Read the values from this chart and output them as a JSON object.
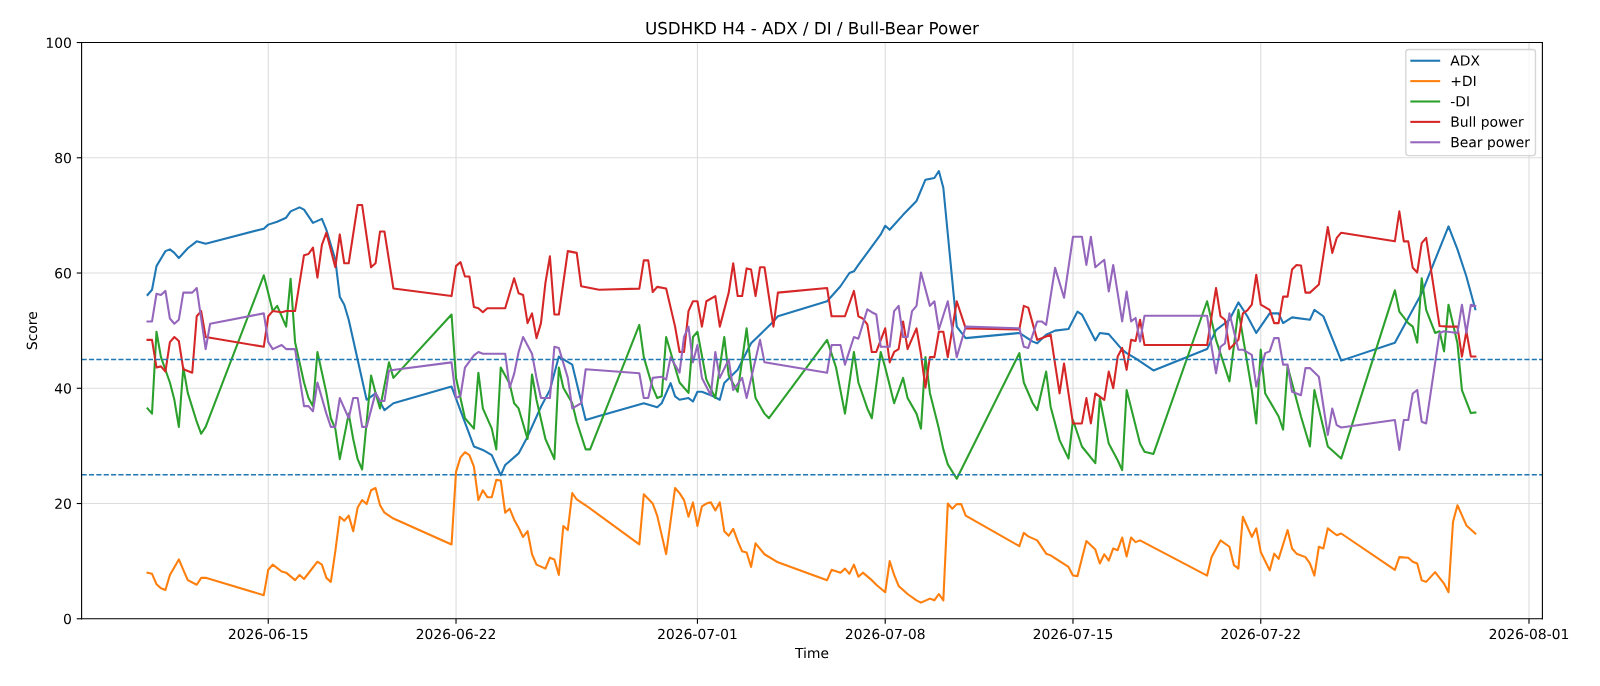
{
  "chart_data": {
    "type": "line",
    "title": "USDHKD H4 - ADX / DI / Bull-Bear Power",
    "xlabel": "Time",
    "ylabel": "Score",
    "xlim": [
      "2026-06-08T01:00",
      "2026-08-01T12:00"
    ],
    "xticks": [
      "2026-06-15",
      "2026-06-22",
      "2026-07-01",
      "2026-07-08",
      "2026-07-15",
      "2026-07-22",
      "2026-08-01"
    ],
    "ylim": [
      0,
      100
    ],
    "yticks": [
      0,
      20,
      40,
      60,
      80,
      100
    ],
    "grid": true,
    "legend": "top right",
    "line_style": "solid",
    "ref_lines": [
      {
        "axis": "y",
        "value": 45,
        "color": "#1f77b4",
        "line_style": "dashed"
      },
      {
        "axis": "y",
        "value": 25,
        "color": "#1f77b4",
        "line_style": "dashed"
      }
    ],
    "series": [
      {
        "name": "ADX",
        "color": "#1f77b4",
        "x": [
          "2026-06-10T12:00",
          "2026-06-10T16:00",
          "2026-06-10T20:00",
          "2026-06-11T04:00",
          "2026-06-11T08:00",
          "2026-06-11T12:00",
          "2026-06-11T16:00",
          "2026-06-12T00:00",
          "2026-06-12T08:00",
          "2026-06-12T16:00",
          "2026-06-14T20:00",
          "2026-06-15T00:00",
          "2026-06-15T08:00",
          "2026-06-15T16:00",
          "2026-06-15T20:00",
          "2026-06-16T04:00",
          "2026-06-16T08:00",
          "2026-06-16T16:00",
          "2026-06-17T00:00",
          "2026-06-17T04:00",
          "2026-06-17T12:00",
          "2026-06-17T16:00",
          "2026-06-17T20:00",
          "2026-06-18T00:00",
          "2026-06-18T16:00",
          "2026-06-19T00:00",
          "2026-06-19T08:00",
          "2026-06-19T16:00",
          "2026-06-21T20:00",
          "2026-06-22T16:00",
          "2026-06-23T00:00",
          "2026-06-23T08:00",
          "2026-06-23T16:00",
          "2026-06-23T20:00",
          "2026-06-24T08:00",
          "2026-06-24T16:00",
          "2026-06-25T04:00",
          "2026-06-25T12:00",
          "2026-06-25T20:00",
          "2026-06-26T08:00",
          "2026-06-26T20:00",
          "2026-06-27T08:00",
          "2026-06-29T00:00",
          "2026-06-29T12:00",
          "2026-06-29T16:00",
          "2026-06-30T00:00",
          "2026-06-30T04:00",
          "2026-06-30T08:00",
          "2026-06-30T16:00",
          "2026-06-30T20:00",
          "2026-07-01T00:00",
          "2026-07-01T04:00",
          "2026-07-01T12:00",
          "2026-07-01T20:00",
          "2026-07-02T00:00",
          "2026-07-02T12:00",
          "2026-07-03T00:00",
          "2026-07-03T20:00",
          "2026-07-04T00:00",
          "2026-07-05T20:00",
          "2026-07-06T08:00",
          "2026-07-06T16:00",
          "2026-07-06T20:00",
          "2026-07-07T00:00",
          "2026-07-07T12:00",
          "2026-07-07T20:00",
          "2026-07-08T00:00",
          "2026-07-08T04:00",
          "2026-07-08T16:00",
          "2026-07-09T04:00",
          "2026-07-09T12:00",
          "2026-07-09T20:00",
          "2026-07-10T00:00",
          "2026-07-10T04:00",
          "2026-07-10T16:00",
          "2026-07-11T00:00",
          "2026-07-13T00:00",
          "2026-07-13T12:00",
          "2026-07-13T16:00",
          "2026-07-14T00:00",
          "2026-07-14T08:00",
          "2026-07-14T20:00",
          "2026-07-15T04:00",
          "2026-07-15T08:00",
          "2026-07-15T20:00",
          "2026-07-16T00:00",
          "2026-07-16T08:00",
          "2026-07-16T20:00",
          "2026-07-17T00:00",
          "2026-07-17T08:00",
          "2026-07-18T00:00",
          "2026-07-20T00:00",
          "2026-07-20T08:00",
          "2026-07-20T20:00",
          "2026-07-21T04:00",
          "2026-07-21T12:00",
          "2026-07-21T20:00",
          "2026-07-22T08:00",
          "2026-07-22T16:00",
          "2026-07-22T20:00",
          "2026-07-23T04:00",
          "2026-07-23T20:00",
          "2026-07-24T00:00",
          "2026-07-24T08:00",
          "2026-07-25T00:00",
          "2026-07-27T00:00",
          "2026-07-28T00:00",
          "2026-07-29T00:00",
          "2026-07-29T08:00",
          "2026-07-29T16:00",
          "2026-07-30T00:00"
        ],
        "values": [
          56.2,
          57.1,
          61.2,
          63.8,
          64.1,
          63.5,
          62.6,
          64.3,
          65.5,
          65.1,
          67.7,
          68.4,
          68.9,
          69.6,
          70.7,
          71.4,
          71.0,
          68.7,
          69.4,
          67.5,
          62.3,
          55.9,
          54.5,
          51.9,
          38.0,
          39.1,
          36.2,
          37.4,
          40.3,
          29.9,
          29.3,
          28.4,
          24.9,
          26.7,
          28.7,
          31.6,
          36.8,
          39.7,
          45.5,
          44.1,
          34.5,
          35.2,
          37.4,
          36.7,
          37.4,
          40.9,
          38.6,
          38.0,
          38.3,
          37.7,
          39.4,
          39.4,
          38.8,
          38.0,
          40.9,
          43.2,
          47.8,
          51.6,
          52.5,
          55.1,
          57.7,
          60.0,
          60.3,
          61.4,
          64.6,
          66.7,
          68.2,
          67.5,
          70.1,
          72.5,
          76.2,
          76.5,
          77.7,
          74.8,
          50.7,
          48.7,
          49.6,
          48.1,
          47.8,
          49.3,
          50.0,
          50.3,
          53.3,
          52.8,
          48.3,
          49.6,
          49.4,
          46.7,
          46.1,
          45.2,
          43.1,
          46.8,
          50.1,
          51.9,
          54.9,
          52.5,
          49.6,
          53.0,
          53.0,
          51.3,
          52.3,
          51.9,
          53.6,
          52.5,
          44.8,
          47.9,
          56.5,
          68.1,
          64.1,
          59.4,
          53.7
        ]
      },
      {
        "name": "+DI",
        "color": "#ff7f0e",
        "x": [
          "2026-06-10T12:00",
          "2026-06-10T16:00",
          "2026-06-10T20:00",
          "2026-06-11T00:00",
          "2026-06-11T04:00",
          "2026-06-11T08:00",
          "2026-06-11T16:00",
          "2026-06-11T20:00",
          "2026-06-12T00:00",
          "2026-06-12T08:00",
          "2026-06-12T12:00",
          "2026-06-12T16:00",
          "2026-06-14T20:00",
          "2026-06-15T00:00",
          "2026-06-15T04:00",
          "2026-06-15T12:00",
          "2026-06-15T16:00",
          "2026-06-16T00:00",
          "2026-06-16T04:00",
          "2026-06-16T08:00",
          "2026-06-16T12:00",
          "2026-06-16T20:00",
          "2026-06-17T00:00",
          "2026-06-17T04:00",
          "2026-06-17T08:00",
          "2026-06-17T12:00",
          "2026-06-17T16:00",
          "2026-06-17T20:00",
          "2026-06-18T00:00",
          "2026-06-18T04:00",
          "2026-06-18T08:00",
          "2026-06-18T12:00",
          "2026-06-18T16:00",
          "2026-06-18T20:00",
          "2026-06-19T00:00",
          "2026-06-19T04:00",
          "2026-06-19T08:00",
          "2026-06-19T12:00",
          "2026-06-19T16:00",
          "2026-06-21T20:00",
          "2026-06-22T00:00",
          "2026-06-22T04:00",
          "2026-06-22T08:00",
          "2026-06-22T12:00",
          "2026-06-22T16:00",
          "2026-06-22T20:00",
          "2026-06-23T00:00",
          "2026-06-23T04:00",
          "2026-06-23T08:00",
          "2026-06-23T12:00",
          "2026-06-23T16:00",
          "2026-06-23T20:00",
          "2026-06-24T00:00",
          "2026-06-24T04:00",
          "2026-06-24T08:00",
          "2026-06-24T12:00",
          "2026-06-24T16:00",
          "2026-06-24T20:00",
          "2026-06-25T00:00",
          "2026-06-25T08:00",
          "2026-06-25T12:00",
          "2026-06-25T16:00",
          "2026-06-25T20:00",
          "2026-06-26T00:00",
          "2026-06-26T04:00",
          "2026-06-26T08:00",
          "2026-06-26T12:00",
          "2026-06-26T20:00",
          "2026-06-28T20:00",
          "2026-06-29T00:00",
          "2026-06-29T08:00",
          "2026-06-29T12:00",
          "2026-06-29T20:00",
          "2026-06-30T04:00",
          "2026-06-30T08:00",
          "2026-06-30T12:00",
          "2026-06-30T16:00",
          "2026-06-30T20:00",
          "2026-07-01T00:00",
          "2026-07-01T04:00",
          "2026-07-01T08:00",
          "2026-07-01T12:00",
          "2026-07-01T16:00",
          "2026-07-01T20:00",
          "2026-07-02T00:00",
          "2026-07-02T04:00",
          "2026-07-02T08:00",
          "2026-07-02T12:00",
          "2026-07-02T16:00",
          "2026-07-02T20:00",
          "2026-07-03T00:00",
          "2026-07-03T04:00",
          "2026-07-03T12:00",
          "2026-07-04T00:00",
          "2026-07-05T20:00",
          "2026-07-06T00:00",
          "2026-07-06T08:00",
          "2026-07-06T12:00",
          "2026-07-06T16:00",
          "2026-07-06T20:00",
          "2026-07-07T00:00",
          "2026-07-07T04:00",
          "2026-07-07T12:00",
          "2026-07-07T16:00",
          "2026-07-08T00:00",
          "2026-07-08T04:00",
          "2026-07-08T08:00",
          "2026-07-08T12:00",
          "2026-07-08T20:00",
          "2026-07-09T04:00",
          "2026-07-09T08:00",
          "2026-07-09T16:00",
          "2026-07-09T20:00",
          "2026-07-10T00:00",
          "2026-07-10T04:00",
          "2026-07-10T08:00",
          "2026-07-10T12:00",
          "2026-07-10T16:00",
          "2026-07-10T20:00",
          "2026-07-11T00:00",
          "2026-07-13T00:00",
          "2026-07-13T04:00",
          "2026-07-13T08:00",
          "2026-07-13T16:00",
          "2026-07-14T00:00",
          "2026-07-14T04:00",
          "2026-07-14T20:00",
          "2026-07-15T00:00",
          "2026-07-15T04:00",
          "2026-07-15T12:00",
          "2026-07-15T20:00",
          "2026-07-16T00:00",
          "2026-07-16T04:00",
          "2026-07-16T08:00",
          "2026-07-16T12:00",
          "2026-07-16T16:00",
          "2026-07-16T20:00",
          "2026-07-17T00:00",
          "2026-07-17T04:00",
          "2026-07-17T08:00",
          "2026-07-17T12:00",
          "2026-07-20T00:00",
          "2026-07-20T04:00",
          "2026-07-20T12:00",
          "2026-07-20T20:00",
          "2026-07-21T00:00",
          "2026-07-21T04:00",
          "2026-07-21T08:00",
          "2026-07-21T16:00",
          "2026-07-21T20:00",
          "2026-07-22T00:00",
          "2026-07-22T08:00",
          "2026-07-22T12:00",
          "2026-07-22T16:00",
          "2026-07-23T00:00",
          "2026-07-23T04:00",
          "2026-07-23T08:00",
          "2026-07-23T16:00",
          "2026-07-23T20:00",
          "2026-07-24T00:00",
          "2026-07-24T04:00",
          "2026-07-24T08:00",
          "2026-07-24T12:00",
          "2026-07-24T20:00",
          "2026-07-25T00:00",
          "2026-07-27T00:00",
          "2026-07-27T04:00",
          "2026-07-27T12:00",
          "2026-07-27T16:00",
          "2026-07-27T20:00",
          "2026-07-28T00:00",
          "2026-07-28T04:00",
          "2026-07-28T12:00",
          "2026-07-28T20:00",
          "2026-07-29T00:00",
          "2026-07-29T04:00",
          "2026-07-29T08:00",
          "2026-07-29T16:00",
          "2026-07-30T00:00"
        ],
        "values": [
          8.0,
          7.8,
          6.0,
          5.3,
          5.0,
          7.6,
          10.3,
          8.5,
          6.7,
          5.9,
          7.1,
          7.1,
          4.1,
          8.5,
          9.4,
          8.2,
          8.0,
          6.7,
          7.6,
          6.9,
          7.9,
          9.9,
          9.4,
          7.1,
          6.4,
          11.7,
          17.7,
          17.0,
          17.9,
          15.2,
          19.3,
          20.6,
          19.9,
          22.3,
          22.7,
          19.7,
          18.4,
          17.9,
          17.4,
          12.9,
          25.5,
          28.0,
          28.9,
          28.4,
          26.4,
          20.6,
          22.3,
          21.1,
          21.1,
          24.1,
          24.0,
          18.4,
          19.1,
          17.2,
          15.8,
          14.2,
          15.2,
          11.2,
          9.4,
          8.7,
          10.6,
          10.3,
          7.6,
          16.1,
          15.4,
          21.8,
          20.7,
          19.7,
          12.9,
          21.6,
          20.0,
          17.9,
          11.2,
          22.7,
          21.8,
          20.6,
          17.7,
          20.2,
          16.1,
          19.5,
          20.0,
          20.2,
          18.8,
          20.2,
          15.2,
          14.4,
          15.6,
          13.5,
          11.7,
          11.5,
          9.0,
          13.1,
          11.2,
          9.8,
          6.7,
          8.5,
          8.0,
          8.7,
          7.8,
          9.4,
          7.3,
          8.0,
          6.7,
          5.9,
          4.6,
          10.0,
          7.6,
          5.7,
          4.3,
          3.2,
          2.8,
          3.5,
          3.2,
          4.3,
          3.2,
          20.0,
          19.1,
          19.9,
          19.9,
          17.9,
          12.6,
          14.9,
          14.3,
          13.6,
          11.3,
          11.0,
          9.0,
          7.5,
          7.4,
          13.5,
          12.0,
          9.6,
          11.2,
          10.1,
          12.2,
          11.9,
          14.1,
          10.8,
          14.1,
          13.3,
          13.6,
          7.5,
          10.7,
          13.6,
          12.5,
          9.3,
          8.7,
          17.7,
          14.2,
          15.7,
          11.6,
          8.4,
          11.3,
          10.4,
          15.4,
          12.2,
          11.3,
          10.7,
          9.6,
          7.5,
          12.5,
          12.2,
          15.7,
          14.5,
          14.8,
          8.5,
          10.7,
          10.6,
          9.9,
          9.6,
          6.7,
          6.4,
          8.1,
          6.1,
          4.6,
          16.8,
          19.7,
          16.2,
          14.8
        ]
      },
      {
        "name": "-DI",
        "color": "#2ca02c",
        "x": [
          "2026-06-10T12:00",
          "2026-06-10T16:00",
          "2026-06-10T20:00",
          "2026-06-11T00:00",
          "2026-06-11T08:00",
          "2026-06-11T12:00",
          "2026-06-11T16:00",
          "2026-06-11T20:00",
          "2026-06-12T00:00",
          "2026-06-12T08:00",
          "2026-06-12T12:00",
          "2026-06-12T16:00",
          "2026-06-14T20:00",
          "2026-06-15T04:00",
          "2026-06-15T08:00",
          "2026-06-15T16:00",
          "2026-06-15T20:00",
          "2026-06-16T00:00",
          "2026-06-16T08:00",
          "2026-06-16T12:00",
          "2026-06-16T16:00",
          "2026-06-16T20:00",
          "2026-06-17T04:00",
          "2026-06-17T08:00",
          "2026-06-17T12:00",
          "2026-06-17T16:00",
          "2026-06-18T00:00",
          "2026-06-18T04:00",
          "2026-06-18T08:00",
          "2026-06-18T12:00",
          "2026-06-18T20:00",
          "2026-06-19T00:00",
          "2026-06-19T04:00",
          "2026-06-19T12:00",
          "2026-06-19T16:00",
          "2026-06-21T20:00",
          "2026-06-22T00:00",
          "2026-06-22T08:00",
          "2026-06-22T16:00",
          "2026-06-22T20:00",
          "2026-06-23T00:00",
          "2026-06-23T08:00",
          "2026-06-23T12:00",
          "2026-06-23T16:00",
          "2026-06-24T00:00",
          "2026-06-24T04:00",
          "2026-06-24T08:00",
          "2026-06-24T16:00",
          "2026-06-24T20:00",
          "2026-06-25T00:00",
          "2026-06-25T08:00",
          "2026-06-25T16:00",
          "2026-06-25T20:00",
          "2026-06-26T00:00",
          "2026-06-26T08:00",
          "2026-06-26T12:00",
          "2026-06-26T20:00",
          "2026-06-27T00:00",
          "2026-06-28T20:00",
          "2026-06-29T00:00",
          "2026-06-29T08:00",
          "2026-06-29T12:00",
          "2026-06-29T16:00",
          "2026-06-29T20:00",
          "2026-06-30T04:00",
          "2026-06-30T08:00",
          "2026-06-30T16:00",
          "2026-06-30T20:00",
          "2026-07-01T00:00",
          "2026-07-01T08:00",
          "2026-07-01T16:00",
          "2026-07-02T00:00",
          "2026-07-02T04:00",
          "2026-07-02T12:00",
          "2026-07-02T20:00",
          "2026-07-03T00:00",
          "2026-07-03T04:00",
          "2026-07-03T12:00",
          "2026-07-03T16:00",
          "2026-07-05T20:00",
          "2026-07-06T04:00",
          "2026-07-06T12:00",
          "2026-07-06T20:00",
          "2026-07-07T00:00",
          "2026-07-07T08:00",
          "2026-07-07T12:00",
          "2026-07-07T20:00",
          "2026-07-08T00:00",
          "2026-07-08T08:00",
          "2026-07-08T16:00",
          "2026-07-08T20:00",
          "2026-07-09T04:00",
          "2026-07-09T08:00",
          "2026-07-09T12:00",
          "2026-07-09T16:00",
          "2026-07-10T00:00",
          "2026-07-10T04:00",
          "2026-07-10T08:00",
          "2026-07-10T16:00",
          "2026-07-13T00:00",
          "2026-07-13T04:00",
          "2026-07-13T12:00",
          "2026-07-13T16:00",
          "2026-07-14T00:00",
          "2026-07-14T04:00",
          "2026-07-14T12:00",
          "2026-07-14T20:00",
          "2026-07-15T00:00",
          "2026-07-15T08:00",
          "2026-07-15T20:00",
          "2026-07-16T00:00",
          "2026-07-16T08:00",
          "2026-07-16T16:00",
          "2026-07-16T20:00",
          "2026-07-17T00:00",
          "2026-07-17T12:00",
          "2026-07-17T16:00",
          "2026-07-18T00:00",
          "2026-07-20T00:00",
          "2026-07-20T08:00",
          "2026-07-20T20:00",
          "2026-07-21T04:00",
          "2026-07-21T16:00",
          "2026-07-21T20:00",
          "2026-07-22T00:00",
          "2026-07-22T04:00",
          "2026-07-22T16:00",
          "2026-07-22T20:00",
          "2026-07-23T00:00",
          "2026-07-23T12:00",
          "2026-07-23T20:00",
          "2026-07-24T00:00",
          "2026-07-24T12:00",
          "2026-07-25T00:00",
          "2026-07-27T00:00",
          "2026-07-27T04:00",
          "2026-07-27T12:00",
          "2026-07-27T16:00",
          "2026-07-27T20:00",
          "2026-07-28T00:00",
          "2026-07-28T04:00",
          "2026-07-28T12:00",
          "2026-07-28T16:00",
          "2026-07-28T20:00",
          "2026-07-29T00:00",
          "2026-07-29T08:00",
          "2026-07-29T12:00",
          "2026-07-29T20:00",
          "2026-07-30T00:00"
        ],
        "values": [
          36.5,
          35.6,
          49.8,
          45.4,
          41.0,
          38.0,
          33.3,
          43.6,
          39.2,
          34.2,
          32.1,
          33.3,
          59.6,
          53.4,
          54.3,
          50.7,
          59.0,
          48.0,
          41.0,
          38.3,
          36.9,
          46.3,
          39.2,
          34.8,
          33.0,
          27.7,
          35.6,
          31.2,
          27.7,
          25.9,
          42.2,
          39.2,
          36.5,
          44.5,
          41.8,
          52.8,
          41.8,
          34.8,
          33.0,
          42.7,
          36.5,
          33.0,
          29.4,
          43.6,
          40.8,
          37.4,
          36.5,
          31.2,
          42.4,
          38.0,
          31.2,
          27.7,
          43.6,
          40.1,
          37.4,
          34.2,
          29.4,
          29.4,
          51.0,
          45.4,
          40.1,
          38.3,
          38.6,
          48.9,
          43.6,
          41.0,
          39.2,
          48.9,
          49.8,
          41.5,
          38.3,
          48.9,
          42.2,
          39.4,
          50.4,
          43.6,
          38.3,
          35.6,
          34.8,
          48.4,
          43.6,
          35.6,
          46.3,
          41.0,
          36.5,
          34.8,
          46.3,
          43.6,
          37.4,
          41.8,
          38.3,
          35.6,
          33.0,
          45.4,
          39.2,
          33.0,
          29.4,
          26.8,
          24.3,
          46.1,
          41.0,
          37.4,
          36.2,
          42.9,
          36.8,
          31.0,
          27.8,
          34.5,
          29.9,
          27.0,
          38.3,
          30.4,
          27.5,
          25.8,
          39.7,
          30.4,
          29.0,
          28.6,
          55.1,
          48.4,
          41.2,
          53.6,
          39.7,
          33.9,
          46.7,
          39.1,
          35.1,
          32.8,
          43.8,
          35.1,
          29.9,
          39.7,
          29.9,
          27.8,
          57.0,
          53.3,
          51.3,
          50.7,
          47.9,
          59.1,
          53.6,
          49.6,
          49.9,
          46.4,
          54.5,
          47.8,
          39.7,
          35.7,
          35.8
        ]
      },
      {
        "name": "Bull power",
        "color": "#d62728",
        "x": [
          "2026-06-10T12:00",
          "2026-06-10T16:00",
          "2026-06-10T20:00",
          "2026-06-11T00:00",
          "2026-06-11T04:00",
          "2026-06-11T08:00",
          "2026-06-11T12:00",
          "2026-06-11T16:00",
          "2026-06-11T20:00",
          "2026-06-12T04:00",
          "2026-06-12T08:00",
          "2026-06-12T12:00",
          "2026-06-12T16:00",
          "2026-06-14T20:00",
          "2026-06-15T00:00",
          "2026-06-15T04:00",
          "2026-06-15T12:00",
          "2026-06-15T16:00",
          "2026-06-16T00:00",
          "2026-06-16T08:00",
          "2026-06-16T12:00",
          "2026-06-16T16:00",
          "2026-06-16T20:00",
          "2026-06-17T00:00",
          "2026-06-17T04:00",
          "2026-06-17T12:00",
          "2026-06-17T16:00",
          "2026-06-17T20:00",
          "2026-06-18T00:00",
          "2026-06-18T08:00",
          "2026-06-18T12:00",
          "2026-06-18T20:00",
          "2026-06-19T00:00",
          "2026-06-19T04:00",
          "2026-06-19T08:00",
          "2026-06-19T16:00",
          "2026-06-21T20:00",
          "2026-06-22T00:00",
          "2026-06-22T04:00",
          "2026-06-22T08:00",
          "2026-06-22T12:00",
          "2026-06-22T16:00",
          "2026-06-22T20:00",
          "2026-06-23T00:00",
          "2026-06-23T04:00",
          "2026-06-23T20:00",
          "2026-06-24T04:00",
          "2026-06-24T08:00",
          "2026-06-24T12:00",
          "2026-06-24T16:00",
          "2026-06-24T20:00",
          "2026-06-25T00:00",
          "2026-06-25T04:00",
          "2026-06-25T08:00",
          "2026-06-25T12:00",
          "2026-06-25T16:00",
          "2026-06-25T20:00",
          "2026-06-26T04:00",
          "2026-06-26T12:00",
          "2026-06-26T16:00",
          "2026-06-27T08:00",
          "2026-06-28T20:00",
          "2026-06-29T00:00",
          "2026-06-29T04:00",
          "2026-06-29T08:00",
          "2026-06-29T12:00",
          "2026-06-29T20:00",
          "2026-06-30T04:00",
          "2026-06-30T08:00",
          "2026-06-30T12:00",
          "2026-06-30T16:00",
          "2026-06-30T20:00",
          "2026-07-01T00:00",
          "2026-07-01T04:00",
          "2026-07-01T08:00",
          "2026-07-01T16:00",
          "2026-07-01T20:00",
          "2026-07-02T04:00",
          "2026-07-02T08:00",
          "2026-07-02T12:00",
          "2026-07-02T16:00",
          "2026-07-02T20:00",
          "2026-07-03T00:00",
          "2026-07-03T04:00",
          "2026-07-03T08:00",
          "2026-07-03T12:00",
          "2026-07-03T20:00",
          "2026-07-04T00:00",
          "2026-07-05T20:00",
          "2026-07-06T00:00",
          "2026-07-06T08:00",
          "2026-07-06T12:00",
          "2026-07-06T20:00",
          "2026-07-07T00:00",
          "2026-07-07T04:00",
          "2026-07-07T08:00",
          "2026-07-07T12:00",
          "2026-07-07T16:00",
          "2026-07-08T00:00",
          "2026-07-08T04:00",
          "2026-07-08T08:00",
          "2026-07-08T12:00",
          "2026-07-08T16:00",
          "2026-07-08T20:00",
          "2026-07-09T04:00",
          "2026-07-09T08:00",
          "2026-07-09T12:00",
          "2026-07-09T16:00",
          "2026-07-09T20:00",
          "2026-07-10T00:00",
          "2026-07-10T04:00",
          "2026-07-10T08:00",
          "2026-07-10T16:00",
          "2026-07-11T00:00",
          "2026-07-13T00:00",
          "2026-07-13T04:00",
          "2026-07-13T08:00",
          "2026-07-13T16:00",
          "2026-07-14T00:00",
          "2026-07-14T04:00",
          "2026-07-14T12:00",
          "2026-07-14T16:00",
          "2026-07-15T00:00",
          "2026-07-15T08:00",
          "2026-07-15T12:00",
          "2026-07-15T16:00",
          "2026-07-15T20:00",
          "2026-07-16T04:00",
          "2026-07-16T08:00",
          "2026-07-16T12:00",
          "2026-07-16T16:00",
          "2026-07-16T20:00",
          "2026-07-17T00:00",
          "2026-07-17T04:00",
          "2026-07-17T08:00",
          "2026-07-17T12:00",
          "2026-07-17T16:00",
          "2026-07-20T00:00",
          "2026-07-20T08:00",
          "2026-07-20T12:00",
          "2026-07-20T16:00",
          "2026-07-20T20:00",
          "2026-07-21T04:00",
          "2026-07-21T08:00",
          "2026-07-21T12:00",
          "2026-07-21T16:00",
          "2026-07-21T20:00",
          "2026-07-22T00:00",
          "2026-07-22T08:00",
          "2026-07-22T12:00",
          "2026-07-22T16:00",
          "2026-07-22T20:00",
          "2026-07-23T00:00",
          "2026-07-23T04:00",
          "2026-07-23T08:00",
          "2026-07-23T12:00",
          "2026-07-23T16:00",
          "2026-07-23T20:00",
          "2026-07-24T04:00",
          "2026-07-24T12:00",
          "2026-07-24T16:00",
          "2026-07-24T20:00",
          "2026-07-25T00:00",
          "2026-07-27T00:00",
          "2026-07-27T04:00",
          "2026-07-27T08:00",
          "2026-07-27T12:00",
          "2026-07-27T16:00",
          "2026-07-27T20:00",
          "2026-07-28T00:00",
          "2026-07-28T04:00",
          "2026-07-28T16:00",
          "2026-07-29T00:00",
          "2026-07-29T08:00",
          "2026-07-29T12:00",
          "2026-07-29T16:00",
          "2026-07-29T20:00",
          "2026-07-30T00:00"
        ],
        "values": [
          48.4,
          48.4,
          43.6,
          43.8,
          42.9,
          48.0,
          48.9,
          48.2,
          43.3,
          42.7,
          52.5,
          53.4,
          48.9,
          47.2,
          52.5,
          53.4,
          53.2,
          53.4,
          53.4,
          63.1,
          63.3,
          64.4,
          59.2,
          64.9,
          67.0,
          61.0,
          66.7,
          61.7,
          61.7,
          71.8,
          71.8,
          61.0,
          61.7,
          67.2,
          67.2,
          57.3,
          56.0,
          61.2,
          61.9,
          59.4,
          59.4,
          54.1,
          53.9,
          53.2,
          53.9,
          53.9,
          59.1,
          56.5,
          56.2,
          51.3,
          53.0,
          48.7,
          51.3,
          58.3,
          62.9,
          52.8,
          52.8,
          63.8,
          63.5,
          57.7,
          57.1,
          57.3,
          62.2,
          62.2,
          56.7,
          57.6,
          57.3,
          50.7,
          46.3,
          46.3,
          53.4,
          55.1,
          55.1,
          50.7,
          55.1,
          56.0,
          50.7,
          56.6,
          61.7,
          56.0,
          56.0,
          60.8,
          60.6,
          56.0,
          61.0,
          61.0,
          50.7,
          56.6,
          57.4,
          52.5,
          52.5,
          52.5,
          56.9,
          52.5,
          52.1,
          51.1,
          46.3,
          46.3,
          50.4,
          44.5,
          46.3,
          46.8,
          51.6,
          46.8,
          50.4,
          45.9,
          40.1,
          45.4,
          45.4,
          49.8,
          49.8,
          45.4,
          55.1,
          50.4,
          50.2,
          54.3,
          54.0,
          48.4,
          49.0,
          49.3,
          39.1,
          44.3,
          33.9,
          33.9,
          38.3,
          33.9,
          39.1,
          38.0,
          42.9,
          40.0,
          45.5,
          47.0,
          43.2,
          48.4,
          48.2,
          51.9,
          47.5,
          47.5,
          57.4,
          52.5,
          51.9,
          46.8,
          48.4,
          53.0,
          53.5,
          54.5,
          59.7,
          54.5,
          53.6,
          51.3,
          51.3,
          55.9,
          55.9,
          60.6,
          61.4,
          61.3,
          56.6,
          56.6,
          58.0,
          68.0,
          63.5,
          66.1,
          67.0,
          65.5,
          70.7,
          65.5,
          65.5,
          60.9,
          60.1,
          65.2,
          66.1,
          50.8,
          50.7,
          50.7,
          45.5,
          49.9,
          45.5,
          45.5
        ]
      },
      {
        "name": "Bear power",
        "color": "#9467bd",
        "x": [
          "2026-06-10T12:00",
          "2026-06-10T16:00",
          "2026-06-10T20:00",
          "2026-06-11T00:00",
          "2026-06-11T04:00",
          "2026-06-11T08:00",
          "2026-06-11T12:00",
          "2026-06-11T16:00",
          "2026-06-11T20:00",
          "2026-06-12T04:00",
          "2026-06-12T08:00",
          "2026-06-12T12:00",
          "2026-06-12T16:00",
          "2026-06-12T20:00",
          "2026-06-14T20:00",
          "2026-06-15T00:00",
          "2026-06-15T04:00",
          "2026-06-15T12:00",
          "2026-06-15T16:00",
          "2026-06-16T00:00",
          "2026-06-16T08:00",
          "2026-06-16T12:00",
          "2026-06-16T16:00",
          "2026-06-16T20:00",
          "2026-06-17T04:00",
          "2026-06-17T08:00",
          "2026-06-17T12:00",
          "2026-06-17T16:00",
          "2026-06-18T00:00",
          "2026-06-18T04:00",
          "2026-06-18T08:00",
          "2026-06-18T12:00",
          "2026-06-18T16:00",
          "2026-06-19T00:00",
          "2026-06-19T04:00",
          "2026-06-19T08:00",
          "2026-06-19T12:00",
          "2026-06-21T20:00",
          "2026-06-22T00:00",
          "2026-06-22T04:00",
          "2026-06-22T08:00",
          "2026-06-22T16:00",
          "2026-06-22T20:00",
          "2026-06-23T00:00",
          "2026-06-23T20:00",
          "2026-06-24T00:00",
          "2026-06-24T04:00",
          "2026-06-24T08:00",
          "2026-06-24T12:00",
          "2026-06-24T20:00",
          "2026-06-25T00:00",
          "2026-06-25T04:00",
          "2026-06-25T12:00",
          "2026-06-25T16:00",
          "2026-06-25T20:00",
          "2026-06-26T04:00",
          "2026-06-26T08:00",
          "2026-06-26T16:00",
          "2026-06-26T20:00",
          "2026-06-28T20:00",
          "2026-06-29T00:00",
          "2026-06-29T04:00",
          "2026-06-29T08:00",
          "2026-06-29T16:00",
          "2026-06-29T20:00",
          "2026-06-30T00:00",
          "2026-06-30T08:00",
          "2026-06-30T12:00",
          "2026-06-30T16:00",
          "2026-06-30T20:00",
          "2026-07-01T00:00",
          "2026-07-01T04:00",
          "2026-07-01T12:00",
          "2026-07-01T16:00",
          "2026-07-01T20:00",
          "2026-07-02T04:00",
          "2026-07-02T08:00",
          "2026-07-02T16:00",
          "2026-07-02T20:00",
          "2026-07-03T08:00",
          "2026-07-03T12:00",
          "2026-07-05T20:00",
          "2026-07-06T00:00",
          "2026-07-06T08:00",
          "2026-07-06T12:00",
          "2026-07-06T20:00",
          "2026-07-07T00:00",
          "2026-07-07T08:00",
          "2026-07-07T12:00",
          "2026-07-07T16:00",
          "2026-07-07T20:00",
          "2026-07-08T04:00",
          "2026-07-08T08:00",
          "2026-07-08T12:00",
          "2026-07-08T16:00",
          "2026-07-08T20:00",
          "2026-07-09T00:00",
          "2026-07-09T04:00",
          "2026-07-09T08:00",
          "2026-07-09T16:00",
          "2026-07-09T20:00",
          "2026-07-10T00:00",
          "2026-07-10T08:00",
          "2026-07-10T16:00",
          "2026-07-11T00:00",
          "2026-07-13T00:00",
          "2026-07-13T04:00",
          "2026-07-13T08:00",
          "2026-07-13T16:00",
          "2026-07-13T20:00",
          "2026-07-14T00:00",
          "2026-07-14T08:00",
          "2026-07-14T16:00",
          "2026-07-15T00:00",
          "2026-07-15T08:00",
          "2026-07-15T12:00",
          "2026-07-15T16:00",
          "2026-07-15T20:00",
          "2026-07-16T04:00",
          "2026-07-16T08:00",
          "2026-07-16T12:00",
          "2026-07-16T20:00",
          "2026-07-17T00:00",
          "2026-07-17T04:00",
          "2026-07-17T08:00",
          "2026-07-17T12:00",
          "2026-07-17T16:00",
          "2026-07-20T00:00",
          "2026-07-20T04:00",
          "2026-07-20T08:00",
          "2026-07-20T12:00",
          "2026-07-20T16:00",
          "2026-07-20T20:00",
          "2026-07-21T04:00",
          "2026-07-21T08:00",
          "2026-07-21T16:00",
          "2026-07-21T20:00",
          "2026-07-22T04:00",
          "2026-07-22T08:00",
          "2026-07-22T12:00",
          "2026-07-22T16:00",
          "2026-07-22T20:00",
          "2026-07-23T00:00",
          "2026-07-23T04:00",
          "2026-07-23T12:00",
          "2026-07-23T16:00",
          "2026-07-23T20:00",
          "2026-07-24T04:00",
          "2026-07-24T12:00",
          "2026-07-24T16:00",
          "2026-07-24T20:00",
          "2026-07-25T00:00",
          "2026-07-27T00:00",
          "2026-07-27T04:00",
          "2026-07-27T08:00",
          "2026-07-27T12:00",
          "2026-07-27T16:00",
          "2026-07-27T20:00",
          "2026-07-28T00:00",
          "2026-07-28T04:00",
          "2026-07-28T16:00",
          "2026-07-28T20:00",
          "2026-07-29T08:00",
          "2026-07-29T12:00",
          "2026-07-29T16:00",
          "2026-07-29T20:00",
          "2026-07-30T00:00"
        ],
        "values": [
          51.6,
          51.6,
          56.4,
          56.2,
          56.9,
          52.1,
          51.2,
          51.9,
          56.6,
          56.6,
          57.4,
          52.1,
          46.8,
          51.2,
          53.0,
          48.0,
          46.8,
          47.5,
          46.8,
          46.8,
          36.9,
          36.9,
          36.0,
          41.0,
          35.6,
          33.3,
          33.3,
          38.3,
          34.8,
          38.3,
          38.3,
          33.3,
          33.3,
          39.2,
          37.8,
          37.8,
          43.1,
          44.5,
          38.3,
          38.7,
          43.6,
          45.7,
          46.3,
          46.0,
          46.0,
          40.1,
          42.5,
          46.3,
          48.9,
          46.0,
          41.8,
          38.3,
          38.3,
          47.2,
          47.0,
          41.8,
          36.5,
          37.4,
          43.3,
          42.6,
          38.3,
          38.3,
          41.8,
          42.0,
          41.5,
          45.4,
          42.7,
          48.9,
          50.7,
          44.5,
          47.5,
          41.8,
          38.8,
          46.3,
          41.8,
          45.0,
          39.7,
          41.8,
          38.3,
          48.4,
          44.5,
          42.7,
          47.5,
          47.5,
          44.1,
          48.9,
          48.6,
          53.7,
          53.2,
          52.8,
          47.2,
          47.2,
          53.4,
          54.3,
          48.9,
          48.9,
          53.4,
          54.3,
          60.1,
          54.3,
          55.1,
          50.2,
          55.1,
          45.4,
          50.7,
          50.4,
          47.2,
          47.0,
          51.6,
          51.6,
          51.0,
          60.9,
          55.7,
          66.3,
          66.3,
          61.4,
          66.3,
          61.0,
          62.3,
          56.8,
          61.4,
          51.6,
          56.8,
          51.6,
          52.2,
          48.1,
          52.6,
          52.6,
          47.2,
          42.6,
          47.2,
          47.8,
          53.0,
          46.7,
          46.7,
          45.8,
          40.3,
          46.1,
          46.4,
          48.7,
          48.7,
          44.1,
          44.1,
          39.4,
          38.8,
          43.5,
          43.5,
          42.0,
          31.9,
          36.5,
          33.6,
          33.2,
          34.5,
          29.3,
          34.5,
          34.5,
          39.1,
          39.7,
          34.2,
          33.9,
          49.6,
          49.9,
          49.6,
          54.5,
          49.6,
          54.5,
          54.3
        ]
      }
    ]
  }
}
